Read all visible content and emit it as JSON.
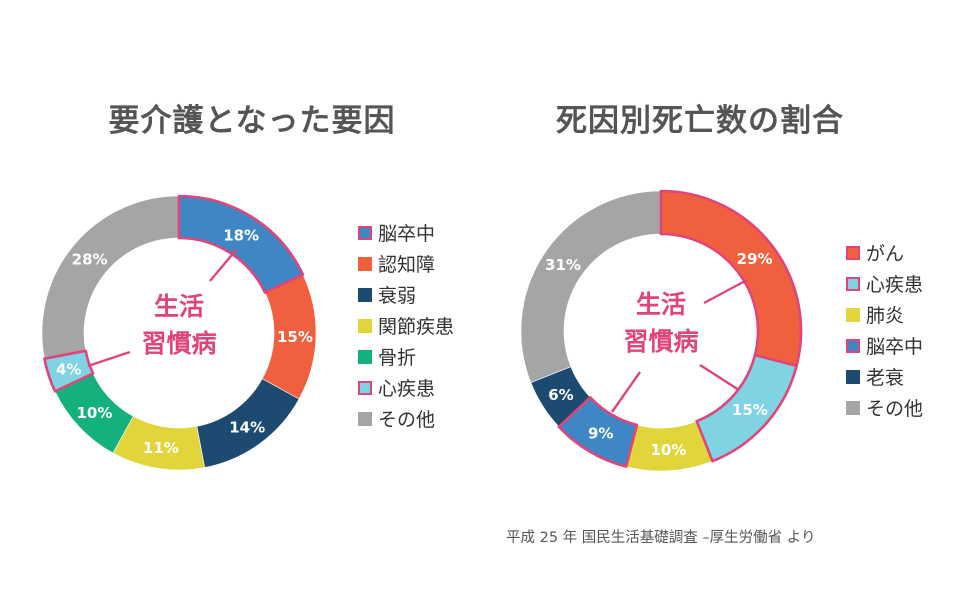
{
  "colors": {
    "highlight_border": "#e0457a",
    "center_label": "#e0457a",
    "pointer_line": "#e0457a",
    "slice_label": "#ffffff"
  },
  "chart_data": [
    {
      "type": "pie",
      "title": "要介護となった要因",
      "center_label": [
        "生活",
        "習慣病"
      ],
      "legend_position": "right",
      "slices": [
        {
          "label": "脳卒中",
          "value": 18,
          "display": "18%",
          "color": "#3f86c4",
          "highlight": true
        },
        {
          "label": "認知障",
          "value": 15,
          "display": "15%",
          "color": "#f05f3e",
          "highlight": false
        },
        {
          "label": "衰弱",
          "value": 14,
          "display": "14%",
          "color": "#1d4a70",
          "highlight": false
        },
        {
          "label": "関節疾患",
          "value": 11,
          "display": "11%",
          "color": "#e2d53b",
          "highlight": false
        },
        {
          "label": "骨折",
          "value": 10,
          "display": "10%",
          "color": "#14b17e",
          "highlight": false
        },
        {
          "label": "心疾患",
          "value": 4,
          "display": "4%",
          "color": "#7fd3e3",
          "highlight": true
        },
        {
          "label": "その他",
          "value": 28,
          "display": "28%",
          "color": "#a5a5a5",
          "highlight": false
        }
      ]
    },
    {
      "type": "pie",
      "title": "死因別死亡数の割合",
      "center_label": [
        "生活",
        "習慣病"
      ],
      "legend_position": "right",
      "slices": [
        {
          "label": "がん",
          "value": 29,
          "display": "29%",
          "color": "#f05f3e",
          "highlight": true
        },
        {
          "label": "心疾患",
          "value": 15,
          "display": "15%",
          "color": "#7fd3e3",
          "highlight": true
        },
        {
          "label": "肺炎",
          "value": 10,
          "display": "10%",
          "color": "#e2d53b",
          "highlight": false
        },
        {
          "label": "脳卒中",
          "value": 9,
          "display": "9%",
          "color": "#3f86c4",
          "highlight": true
        },
        {
          "label": "老衰",
          "value": 6,
          "display": "6%",
          "color": "#1d4a70",
          "highlight": false
        },
        {
          "label": "その他",
          "value": 31,
          "display": "31%",
          "color": "#a5a5a5",
          "highlight": false
        }
      ]
    }
  ],
  "source": "平成 25 年 国民生活基礎調査 –厚生労働省 より"
}
